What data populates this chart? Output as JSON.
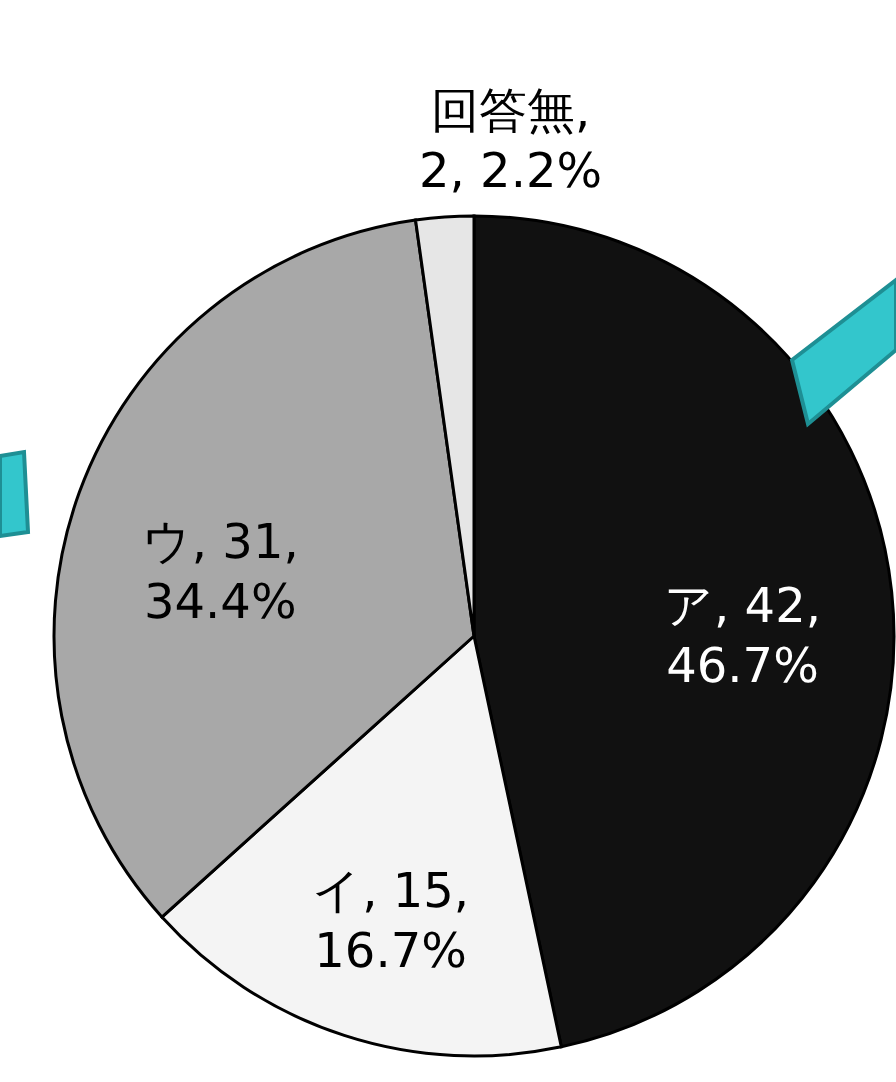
{
  "chart_data": {
    "type": "pie",
    "categories": [
      "ア",
      "イ",
      "ウ",
      "回答無"
    ],
    "values": [
      42,
      15,
      31,
      2
    ],
    "colors": [
      "#111111",
      "#f4f4f4",
      "#a8a8a8",
      "#e6e6e6"
    ],
    "value_labels": [
      ", 42,\n46.7%",
      ", 15,\n16.7%",
      ", 31,\n34.4%",
      ",\n2, 2.2%"
    ]
  }
}
